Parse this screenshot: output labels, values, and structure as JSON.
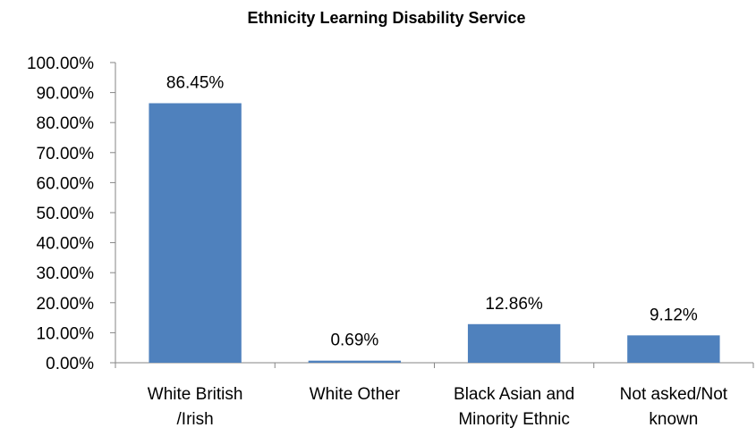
{
  "chart_data": {
    "type": "bar",
    "title": "Ethnicity Learning Disability Service",
    "xlabel": "",
    "ylabel": "",
    "categories": [
      [
        "White British",
        "/Irish"
      ],
      [
        "White Other"
      ],
      [
        "Black Asian and",
        "Minority Ethnic"
      ],
      [
        "Not asked/Not",
        "known"
      ]
    ],
    "values": [
      86.45,
      0.69,
      12.86,
      9.12
    ],
    "data_labels": [
      "86.45%",
      "0.69%",
      "12.86%",
      "9.12%"
    ],
    "ylim": [
      0,
      100
    ],
    "yticks": [
      0,
      10,
      20,
      30,
      40,
      50,
      60,
      70,
      80,
      90,
      100
    ],
    "ytick_labels": [
      "0.00%",
      "10.00%",
      "20.00%",
      "30.00%",
      "40.00%",
      "50.00%",
      "60.00%",
      "70.00%",
      "80.00%",
      "90.00%",
      "100.00%"
    ],
    "grid": false,
    "legend": "none",
    "bar_color": "#4F81BD"
  }
}
